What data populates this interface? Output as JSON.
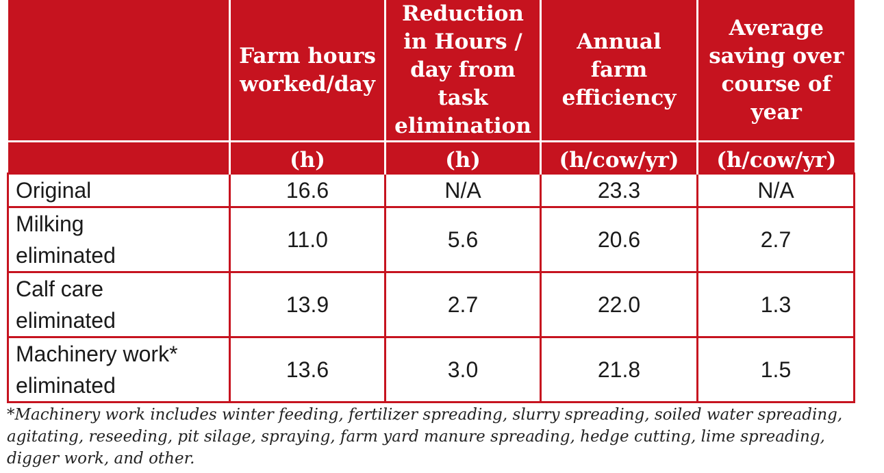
{
  "table": {
    "headers": [
      "",
      "Farm hours worked/day",
      "Reduction in Hours / day from task elimination",
      "Annual farm efficiency",
      "Average saving over course of year"
    ],
    "units": [
      "",
      "(h)",
      "(h)",
      "(h/cow/yr)",
      "(h/cow/yr)"
    ],
    "rows": [
      {
        "label": "Original",
        "values": [
          "16.6",
          "N/A",
          "23.3",
          "N/A"
        ]
      },
      {
        "label": "Milking eliminated",
        "values": [
          "11.0",
          "5.6",
          "20.6",
          "2.7"
        ]
      },
      {
        "label": "Calf care eliminated",
        "values": [
          "13.9",
          "2.7",
          "22.0",
          "1.3"
        ]
      },
      {
        "label": "Machinery work* eliminated",
        "values": [
          "13.6",
          "3.0",
          "21.8",
          "1.5"
        ]
      }
    ]
  },
  "footnote": "*Machinery work includes winter feeding, fertilizer spreading, slurry spreading, soiled water spreading, agitating, reseeding, pit silage, spraying, farm yard manure spreading, hedge cutting, lime spreading, digger work, and other.",
  "colors": {
    "header_bg": "#c6131f",
    "header_text": "#ffffff",
    "border": "#c6131f"
  }
}
